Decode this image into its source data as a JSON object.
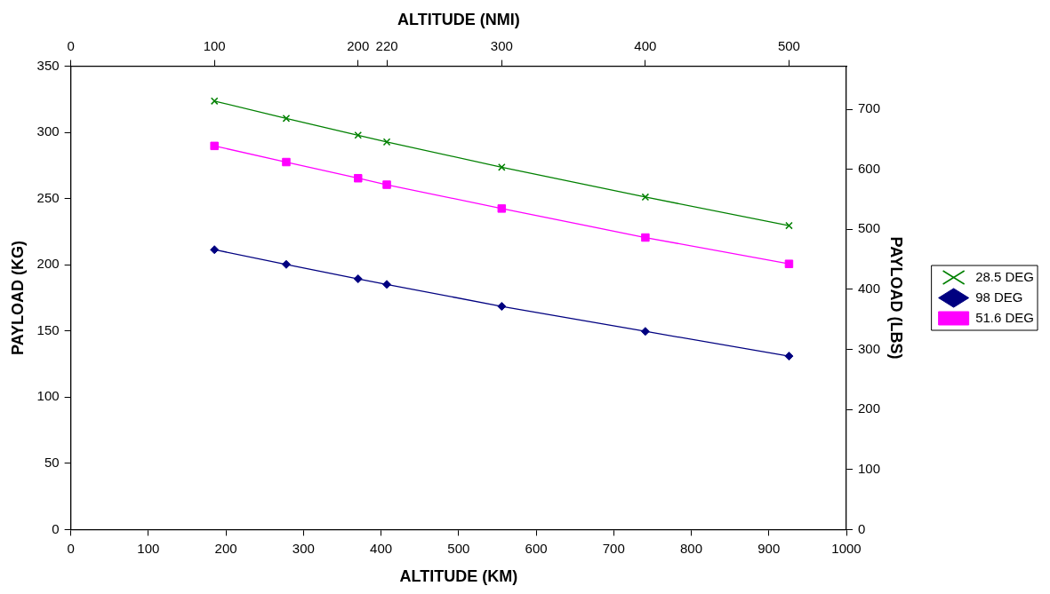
{
  "chart_data": {
    "type": "line",
    "xlabel": "ALTITUDE (KM)",
    "ylabel": "PAYLOAD (KG)",
    "y2label": "PAYLOAD (LBS)",
    "x2label": "ALTITUDE (NMI)",
    "x": [
      185.2,
      277.8,
      370.4,
      407.4,
      555.6,
      740.8,
      926
    ],
    "series": [
      {
        "name": "28.5 DEG",
        "color": "#008000",
        "marker": "cross",
        "values": [
          323.7,
          310.6,
          297.9,
          292.8,
          273.7,
          251.2,
          229.6
        ]
      },
      {
        "name": "98 DEG",
        "color": "#000080",
        "marker": "diamond",
        "values": [
          211.4,
          200.3,
          189.4,
          185.2,
          168.6,
          149.7,
          131.0
        ]
      },
      {
        "name": "51.6 DEG",
        "color": "#ff00ff",
        "marker": "square",
        "values": [
          289.8,
          277.6,
          265.4,
          260.5,
          242.5,
          220.6,
          200.7
        ]
      }
    ],
    "xlim": [
      0,
      1000
    ],
    "xticks": [
      0,
      100,
      200,
      300,
      400,
      500,
      600,
      700,
      800,
      900,
      1000
    ],
    "x2lim": [
      0,
      539.96
    ],
    "x2ticks": [
      0,
      100,
      200,
      220,
      300,
      400,
      500
    ],
    "ylim": [
      0,
      350
    ],
    "yticks": [
      0,
      50,
      100,
      150,
      200,
      250,
      300,
      350
    ],
    "y2lim": [
      0,
      771.6
    ],
    "y2ticks": [
      0,
      100,
      200,
      300,
      400,
      500,
      600,
      700
    ],
    "grid": false,
    "legend": "right",
    "line_style": "solid"
  }
}
